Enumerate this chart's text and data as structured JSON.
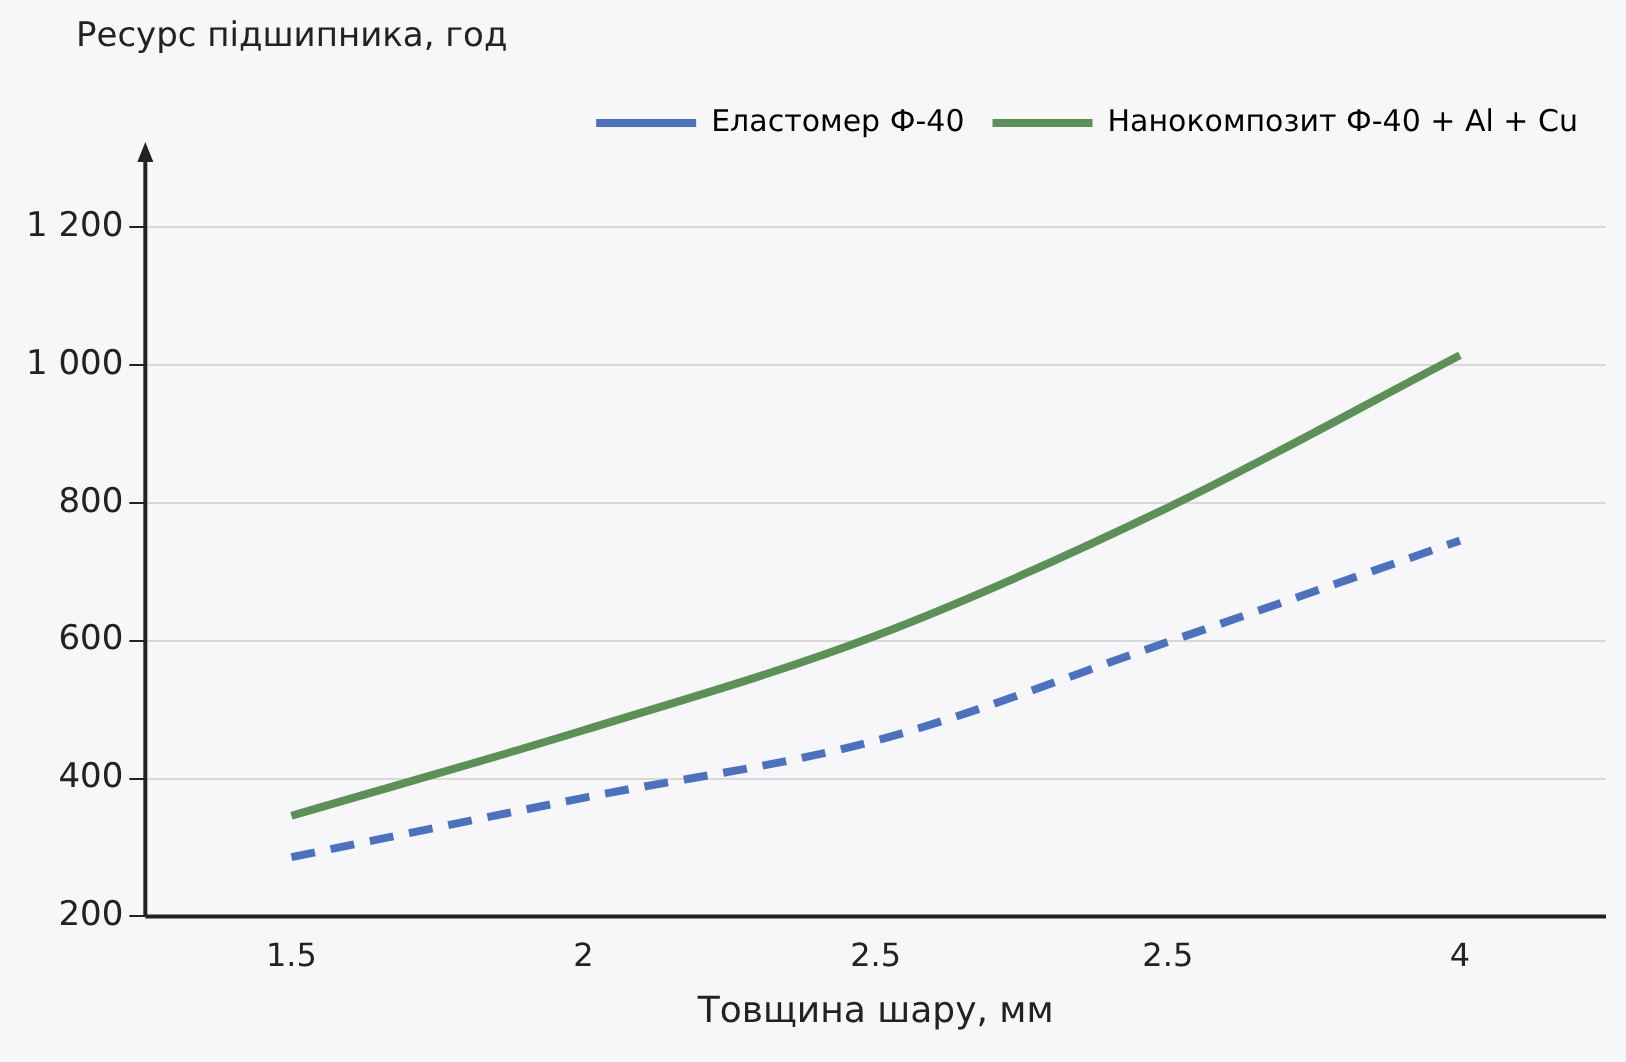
{
  "chart_data": {
    "type": "line",
    "xlabel": "Товщина шару, мм",
    "ylabel": "Ресурс підшипника, год",
    "categories": [
      "1.5",
      "2",
      "2.5",
      "2.5",
      "4"
    ],
    "series": [
      {
        "name": "Еластомер Ф-40",
        "color": "#4a72c0",
        "line_style": "dashed",
        "values": [
          286,
          372,
          455,
          598,
          745
        ]
      },
      {
        "name": "Нанокомпозит Ф-40 + Al + Cu",
        "color": "#5b9157",
        "line_style": "solid",
        "values": [
          346,
          470,
          607,
          793,
          1014
        ]
      }
    ],
    "ylim": [
      200,
      1300
    ],
    "yticks": [
      200,
      400,
      600,
      800,
      {
        "value": 1000,
        "label": "1 000"
      },
      {
        "value": 1200,
        "label": "1 200"
      }
    ],
    "grid": "y",
    "legend": "top right",
    "marker": "none"
  }
}
